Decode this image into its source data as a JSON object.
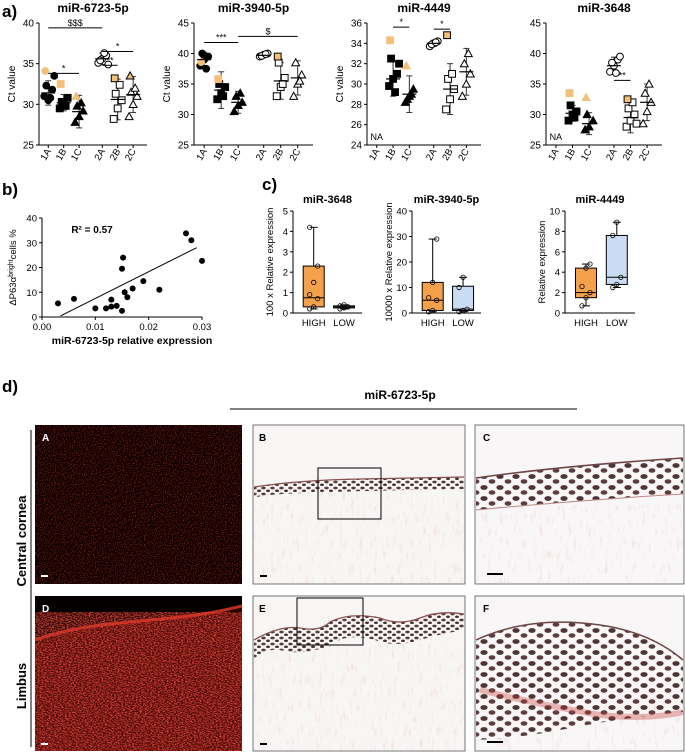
{
  "panel_labels": {
    "a": "a)",
    "b": "b)",
    "c": "c)",
    "d": "d)"
  },
  "colors": {
    "tan": "#f3c07a",
    "orange": "#f5a04b",
    "blue": "#c9dcf3",
    "red": "#d52a20"
  },
  "chart_data": [
    {
      "id": "a1",
      "type": "scatter",
      "title": "miR-6723-5p",
      "ylabel": "Ct value",
      "ylim": [
        25,
        40
      ],
      "yticks": [
        25,
        30,
        35,
        40
      ],
      "categories": [
        "1A",
        "1B",
        "1C",
        "2A",
        "2B",
        "2C"
      ],
      "groups": [
        {
          "category": "1A",
          "marker": "circle",
          "fill": "black",
          "mean": 31.4,
          "sd": 1.5,
          "values": [
            31.0,
            30.5,
            31.8,
            32.3,
            30.8,
            33.5
          ],
          "highlight": [
            34.1
          ]
        },
        {
          "category": "1B",
          "marker": "square",
          "fill": "black",
          "mean": 30.2,
          "sd": 1.0,
          "values": [
            29.5,
            30.0,
            30.8,
            30.3,
            29.8
          ],
          "highlight": [
            32.5
          ]
        },
        {
          "category": "1C",
          "marker": "triangle",
          "fill": "black",
          "mean": 29.1,
          "sd": 2.0,
          "values": [
            27.8,
            28.5,
            29.2,
            29.8,
            30.2
          ],
          "highlight": [
            31.0
          ]
        },
        {
          "category": "2A",
          "marker": "circle",
          "fill": "white",
          "mean": 35.6,
          "sd": 0.7,
          "values": [
            35.1,
            35.6,
            36.0,
            35.4,
            36.3,
            34.9
          ]
        },
        {
          "category": "2B",
          "marker": "square",
          "fill": "white",
          "mean": 30.6,
          "sd": 2.5,
          "values": [
            28.2,
            29.5,
            30.5,
            31.3,
            32.4
          ],
          "highlight": [
            33.2
          ]
        },
        {
          "category": "2C",
          "marker": "triangle",
          "fill": "white",
          "mean": 31.2,
          "sd": 2.2,
          "values": [
            28.5,
            30.0,
            31.0,
            31.5,
            32.0
          ],
          "highlight": [
            33.5
          ]
        }
      ],
      "brackets": [
        {
          "from": "1A",
          "to": "2A",
          "label": "$$$",
          "y": 39.4
        },
        {
          "from": "1A",
          "to": "1C",
          "label": "*",
          "y": 33.8
        },
        {
          "from": "2A",
          "to": "2C",
          "label": "*",
          "y": 36.5
        },
        {
          "from": "2A",
          "to": "2B",
          "label": "**",
          "y": 34.8
        }
      ]
    },
    {
      "id": "a2",
      "type": "scatter",
      "title": "miR-3940-5p",
      "ylabel": "Ct value",
      "ylim": [
        25,
        45
      ],
      "yticks": [
        25,
        30,
        35,
        40,
        45
      ],
      "categories": [
        "1A",
        "1B",
        "1C",
        "2A",
        "2B",
        "2C"
      ],
      "groups": [
        {
          "category": "1A",
          "marker": "circle",
          "fill": "black",
          "mean": 39.0,
          "sd": 1.2,
          "values": [
            38.0,
            39.0,
            39.5,
            40.0,
            37.5
          ],
          "highlight": [
            38.6
          ]
        },
        {
          "category": "1B",
          "marker": "square",
          "fill": "black",
          "mean": 34.0,
          "sd": 3.0,
          "values": [
            32.5,
            33.5,
            34.5,
            35.0,
            33.0
          ],
          "highlight": [
            35.8
          ]
        },
        {
          "category": "1C",
          "marker": "triangle",
          "fill": "black",
          "mean": 32.0,
          "sd": 1.8,
          "values": [
            30.5,
            31.5,
            32.0,
            33.0,
            33.5
          ]
        },
        {
          "category": "2A",
          "marker": "circle",
          "fill": "white",
          "mean": 39.7,
          "sd": 0.3,
          "values": [
            39.5,
            39.8,
            40.0,
            39.6,
            39.9
          ]
        },
        {
          "category": "2B",
          "marker": "square",
          "fill": "white",
          "mean": 35.5,
          "sd": 3.0,
          "values": [
            33.0,
            34.5,
            36.0,
            38.5,
            35.0
          ],
          "highlight": [
            39.5
          ]
        },
        {
          "category": "2C",
          "marker": "triangle",
          "fill": "white",
          "mean": 36.0,
          "sd": 2.8,
          "values": [
            33.0,
            35.0,
            36.5,
            38.5,
            35.5
          ]
        }
      ],
      "brackets": [
        {
          "from": "1A",
          "to": "1C",
          "label": "***",
          "y": 41.8
        },
        {
          "from": "1C",
          "to": "2C",
          "label": "$",
          "y": 42.8
        }
      ]
    },
    {
      "id": "a3",
      "type": "scatter",
      "title": "miR-4449",
      "ylabel": "Ct value",
      "ylim": [
        24,
        36
      ],
      "yticks": [
        24,
        26,
        28,
        30,
        32,
        34,
        36
      ],
      "categories": [
        "1A",
        "1B",
        "1C",
        "2A",
        "2B",
        "2C"
      ],
      "annotations": [
        {
          "category": "1A",
          "text": "NA"
        }
      ],
      "groups": [
        {
          "category": "1B",
          "marker": "square",
          "fill": "black",
          "mean": 30.5,
          "sd": 1.7,
          "values": [
            29.8,
            30.5,
            31.0,
            32.5,
            29.2,
            32.0
          ],
          "highlight": [
            34.3
          ]
        },
        {
          "category": "1C",
          "marker": "triangle",
          "fill": "black",
          "mean": 29.0,
          "sd": 1.8,
          "values": [
            28.2,
            28.8,
            29.5,
            28.5,
            29.0
          ],
          "highlight": [
            31.8
          ]
        },
        {
          "category": "2A",
          "marker": "circle",
          "fill": "white",
          "mean": 34.0,
          "sd": 0.3,
          "values": [
            33.7,
            34.0,
            34.2,
            33.9,
            34.1
          ]
        },
        {
          "category": "2B",
          "marker": "square",
          "fill": "white",
          "mean": 29.5,
          "sd": 2.5,
          "values": [
            27.5,
            28.5,
            29.5,
            30.5,
            31.0
          ],
          "highlight": [
            34.8
          ]
        },
        {
          "category": "2C",
          "marker": "triangle",
          "fill": "white",
          "mean": 31.2,
          "sd": 2.3,
          "values": [
            28.8,
            30.0,
            31.0,
            32.0,
            33.0
          ]
        }
      ],
      "brackets": [
        {
          "from": "1B",
          "to": "1C",
          "label": "*",
          "y": 35.6
        },
        {
          "from": "2A",
          "to": "2B",
          "label": "*",
          "y": 35.4
        }
      ]
    },
    {
      "id": "a4",
      "type": "scatter",
      "title": "miR-3648",
      "ylabel": "",
      "ylim": [
        25,
        45
      ],
      "yticks": [
        25,
        30,
        35,
        40,
        45
      ],
      "categories": [
        "1A",
        "1B",
        "1C",
        "2A",
        "2B",
        "2C"
      ],
      "annotations": [
        {
          "category": "1A",
          "text": "NA"
        }
      ],
      "groups": [
        {
          "category": "1B",
          "marker": "square",
          "fill": "black",
          "mean": 30.2,
          "sd": 1.3,
          "values": [
            29.0,
            30.0,
            30.5,
            31.5,
            29.5
          ],
          "highlight": [
            33.5
          ]
        },
        {
          "category": "1C",
          "marker": "triangle",
          "fill": "black",
          "mean": 28.5,
          "sd": 1.8,
          "values": [
            27.5,
            28.0,
            29.0,
            30.0
          ],
          "highlight": [
            32.8
          ]
        },
        {
          "category": "2A",
          "marker": "circle",
          "fill": "white",
          "mean": 38.0,
          "sd": 1.4,
          "values": [
            37.0,
            38.0,
            39.0,
            38.5,
            36.8,
            39.5
          ]
        },
        {
          "category": "2B",
          "marker": "square",
          "fill": "white",
          "mean": 29.5,
          "sd": 2.5,
          "values": [
            28.0,
            29.0,
            30.0,
            31.0,
            32.0,
            28.5
          ],
          "highlight": [
            32.5
          ]
        },
        {
          "category": "2C",
          "marker": "triangle",
          "fill": "white",
          "mean": 32.0,
          "sd": 3.0,
          "values": [
            28.5,
            30.5,
            32.0,
            33.5,
            35.0
          ]
        }
      ],
      "brackets": [
        {
          "from": "2A",
          "to": "2B",
          "label": "**",
          "y": 35.6
        }
      ]
    },
    {
      "id": "b",
      "type": "scatter",
      "xlabel": "miR-6723-5p relative expression",
      "ylabel_main": "ΔP63α",
      "ylabel_sup": "bright",
      "ylabel_rest": "cells %",
      "xlim": [
        0,
        0.03
      ],
      "ylim": [
        0,
        40
      ],
      "xticks": [
        0.0,
        0.01,
        0.02,
        0.03
      ],
      "xtick_labels": [
        "0.00",
        "0.01",
        "0.02",
        "0.03"
      ],
      "yticks": [
        0,
        10,
        20,
        30,
        40
      ],
      "ytick_labels": [
        "0",
        "10",
        "20",
        "30",
        "40"
      ],
      "annotation": "R² = 0.57",
      "fit": {
        "x0": 0.0035,
        "y0": 0.5,
        "x1": 0.029,
        "y1": 28.0
      },
      "points": [
        [
          0.003,
          5.5
        ],
        [
          0.006,
          7.3
        ],
        [
          0.01,
          3.5
        ],
        [
          0.012,
          3.5
        ],
        [
          0.013,
          7.0
        ],
        [
          0.013,
          4.2
        ],
        [
          0.014,
          4.5
        ],
        [
          0.015,
          2.5
        ],
        [
          0.015,
          19.5
        ],
        [
          0.0152,
          24.0
        ],
        [
          0.0155,
          10.0
        ],
        [
          0.016,
          8.0
        ],
        [
          0.017,
          11.5
        ],
        [
          0.019,
          14.5
        ],
        [
          0.022,
          11.0
        ],
        [
          0.027,
          33.8
        ],
        [
          0.028,
          31.0
        ],
        [
          0.03,
          22.7
        ]
      ]
    },
    {
      "id": "c1",
      "type": "box",
      "title": "miR-3648",
      "ylabel": "100 x Relative expression",
      "ylim": [
        0,
        5
      ],
      "yticks": [
        0,
        1,
        2,
        3,
        4,
        5
      ],
      "categories": [
        "HIGH",
        "LOW"
      ],
      "boxes": [
        {
          "category": "HIGH",
          "color": "orange",
          "min": 0.2,
          "q1": 0.3,
          "median": 0.75,
          "q3": 2.3,
          "max": 4.2,
          "points": [
            0.2,
            0.3,
            0.7,
            0.9,
            1.5,
            2.3,
            4.2
          ]
        },
        {
          "category": "LOW",
          "color": "blue",
          "min": 0.2,
          "q1": 0.25,
          "median": 0.3,
          "q3": 0.35,
          "max": 0.4,
          "points": [
            0.2,
            0.25,
            0.3,
            0.35,
            0.4
          ]
        }
      ]
    },
    {
      "id": "c2",
      "type": "box",
      "title": "miR-3940-5p",
      "ylabel": "10000 x Relative expression",
      "ylim": [
        0,
        40
      ],
      "yticks": [
        0,
        10,
        20,
        30,
        40
      ],
      "categories": [
        "HIGH",
        "LOW"
      ],
      "boxes": [
        {
          "category": "HIGH",
          "color": "orange",
          "min": 0.5,
          "q1": 1.0,
          "median": 5.0,
          "q3": 12.0,
          "max": 29.0,
          "points": [
            0.5,
            1.0,
            5.0,
            6.0,
            12.0,
            29.0
          ]
        },
        {
          "category": "LOW",
          "color": "blue",
          "min": 0.5,
          "q1": 1.0,
          "median": 1.5,
          "q3": 10.5,
          "max": 14.0,
          "points": [
            0.5,
            1.0,
            1.5,
            10.0,
            14.0
          ]
        }
      ]
    },
    {
      "id": "c3",
      "type": "box",
      "title": "miR-4449",
      "ylabel": "Relative expression",
      "ylim": [
        0,
        10
      ],
      "yticks": [
        0,
        2,
        4,
        6,
        8,
        10
      ],
      "categories": [
        "HIGH",
        "LOW"
      ],
      "boxes": [
        {
          "category": "HIGH",
          "color": "orange",
          "min": 0.7,
          "q1": 1.5,
          "median": 2.0,
          "q3": 4.4,
          "max": 4.8,
          "points": [
            0.7,
            1.5,
            2.0,
            2.6,
            4.4,
            4.8
          ]
        },
        {
          "category": "LOW",
          "color": "blue",
          "min": 2.5,
          "q1": 2.8,
          "median": 3.5,
          "q3": 7.6,
          "max": 8.9,
          "points": [
            2.5,
            2.8,
            3.5,
            7.6,
            8.9
          ]
        }
      ]
    }
  ],
  "micrographs": {
    "title": "miR-6723-5p",
    "row_labels": [
      "Central cornea",
      "Limbus"
    ],
    "panels": [
      {
        "letter": "A",
        "style": "fluorescence",
        "site": "cornea"
      },
      {
        "letter": "B",
        "style": "brightfield-wide",
        "site": "cornea"
      },
      {
        "letter": "C",
        "style": "brightfield-zoom",
        "site": "cornea"
      },
      {
        "letter": "D",
        "style": "fluorescence",
        "site": "limbus"
      },
      {
        "letter": "E",
        "style": "brightfield-wide",
        "site": "limbus"
      },
      {
        "letter": "F",
        "style": "brightfield-zoom",
        "site": "limbus"
      }
    ]
  }
}
